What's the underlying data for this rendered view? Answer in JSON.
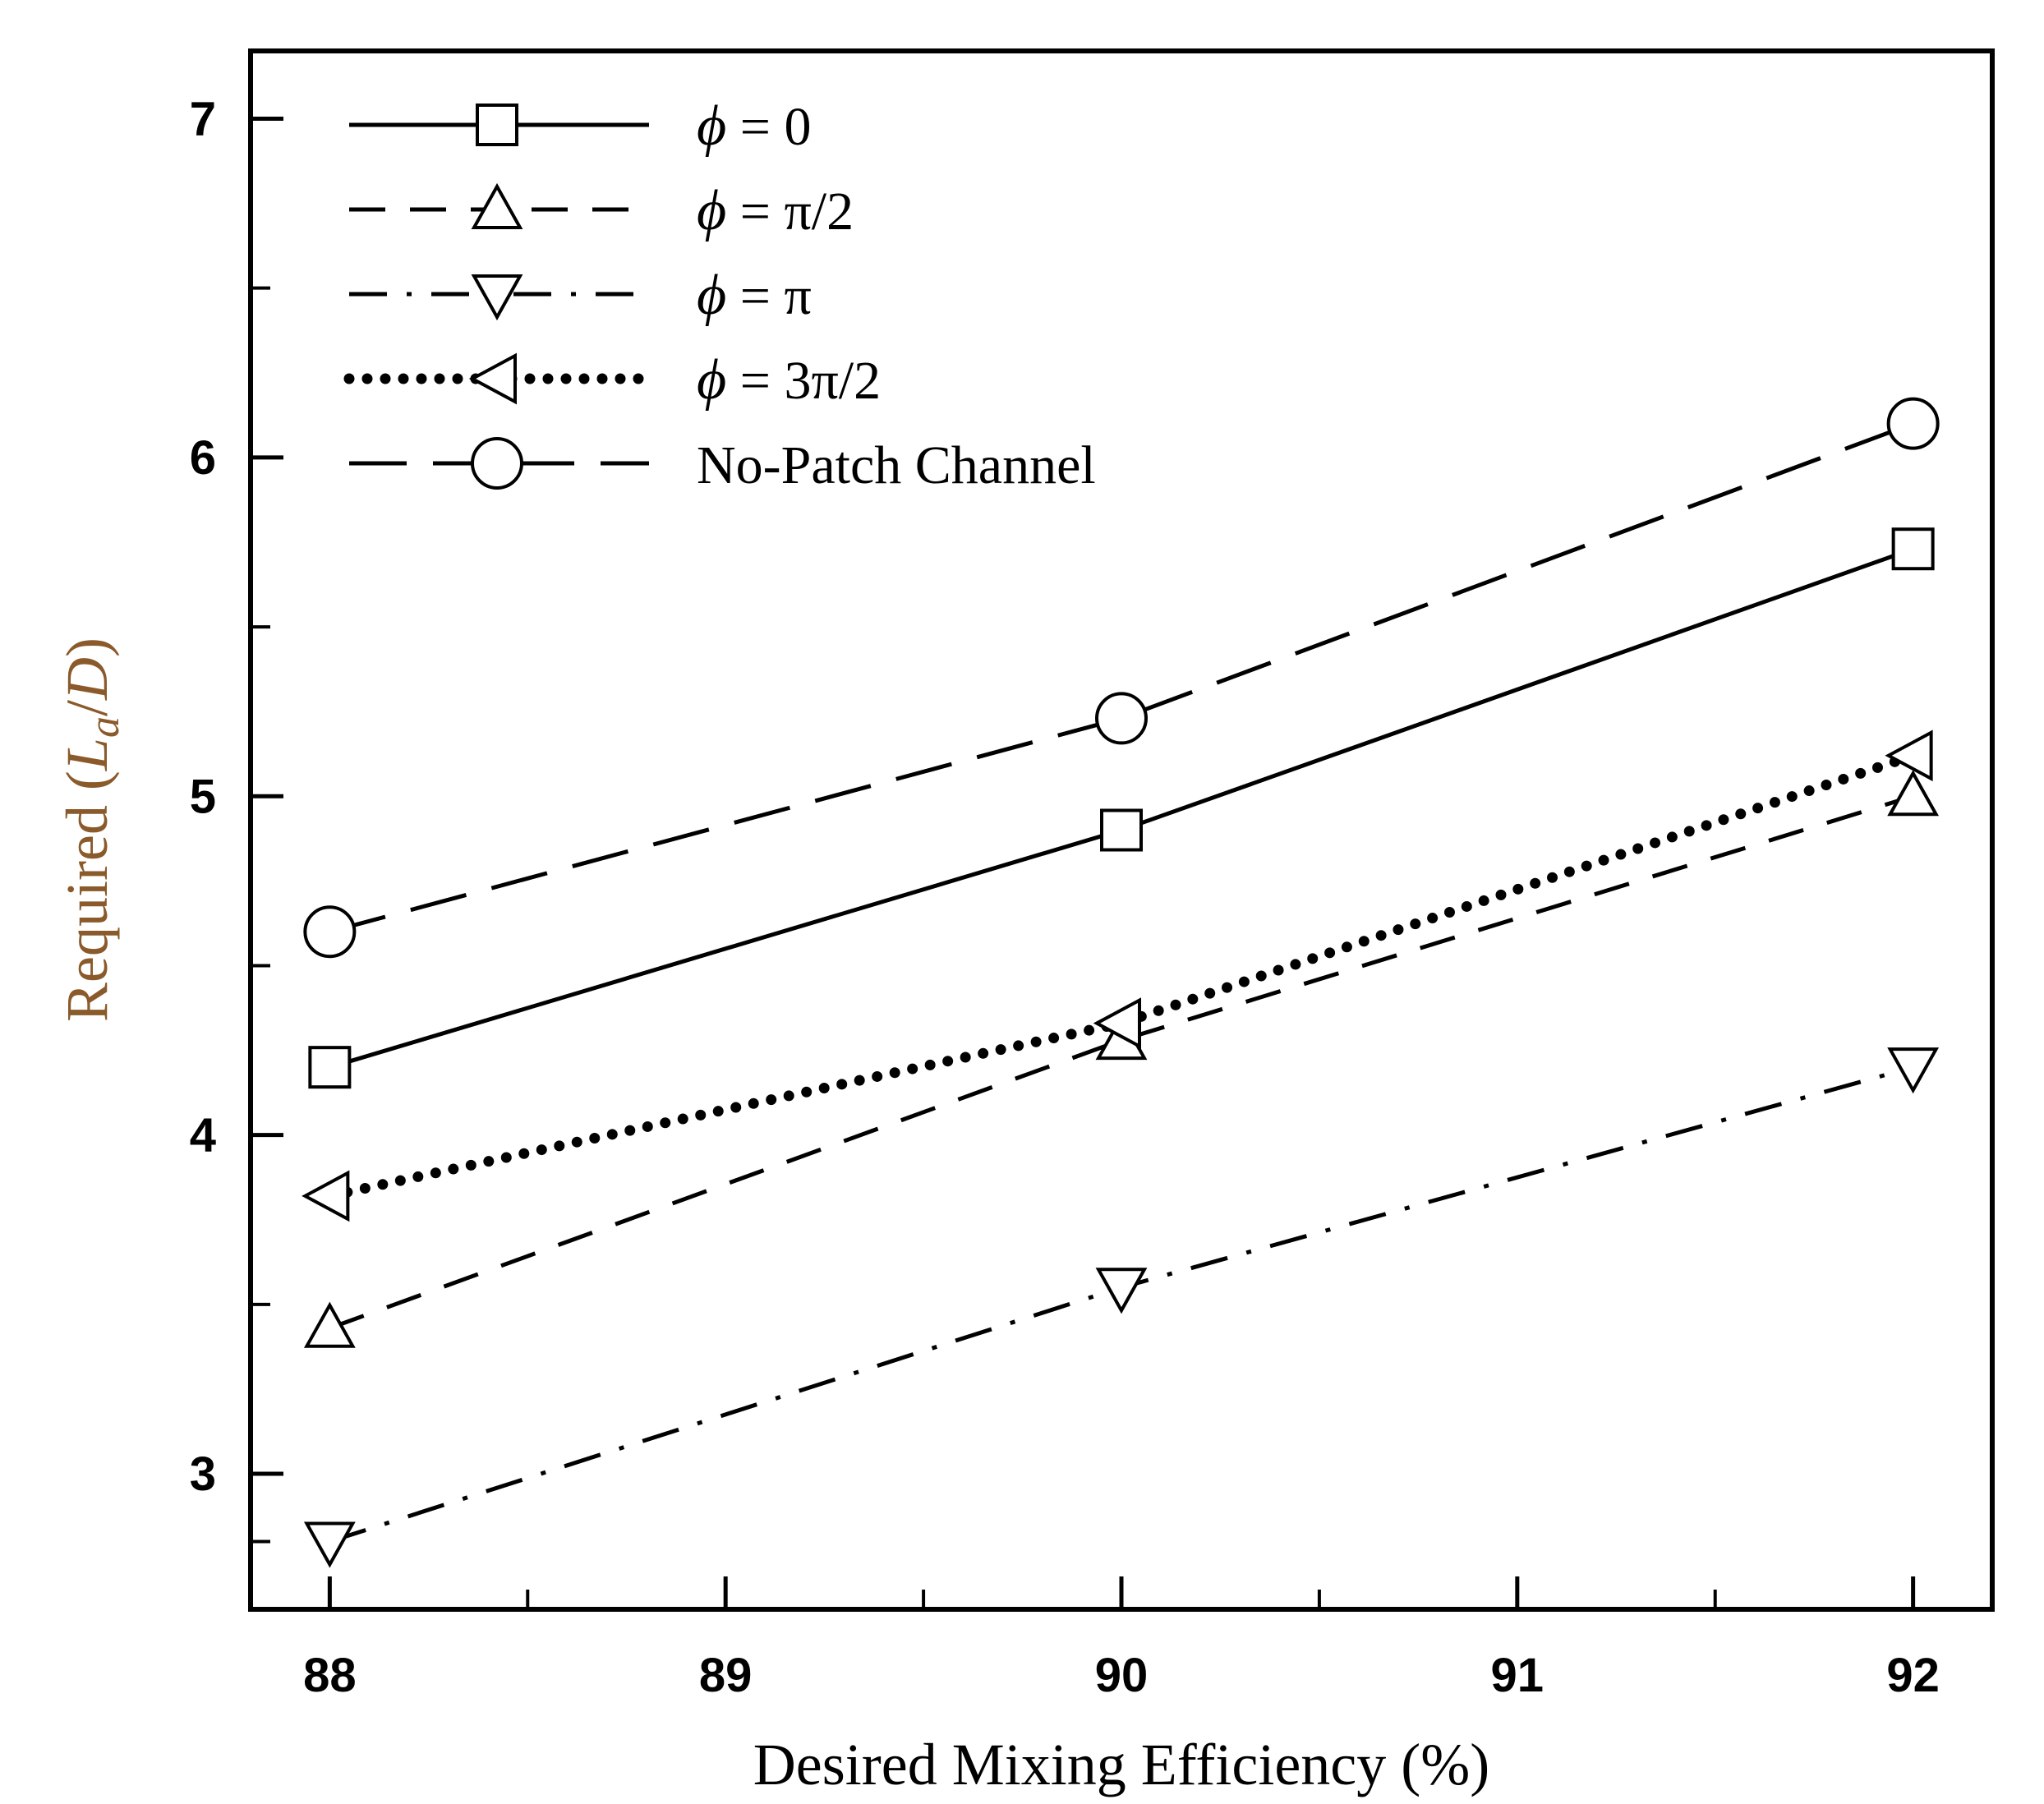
{
  "chart_data": {
    "type": "line",
    "title": "",
    "xlabel": "Desired Mixing Efficiency  (%)",
    "ylabel_prefix": "Required",
    "ylabel_var": "L",
    "ylabel_sub": "a",
    "ylabel_den": "D",
    "x": [
      88,
      90,
      92
    ],
    "xlim": [
      87.8,
      92.2
    ],
    "ylim": [
      2.6,
      7.2
    ],
    "xticks": [
      88,
      89,
      90,
      91,
      92
    ],
    "xtick_labels": [
      "88",
      "89",
      "90",
      "91",
      "92"
    ],
    "yticks": [
      3,
      4,
      5,
      6,
      7
    ],
    "ytick_labels": [
      "3",
      "4",
      "5",
      "6",
      "7"
    ],
    "grid": false,
    "legend_position": "top-left",
    "series": [
      {
        "name": "ϕ = 0",
        "label_sym": "ϕ",
        "label_rest": " = 0",
        "values": [
          4.2,
          4.9,
          5.73
        ],
        "dash": "solid",
        "marker": "square",
        "key": "phi-0"
      },
      {
        "name": "ϕ = π/2",
        "label_sym": "ϕ",
        "label_rest": " = π/2",
        "values": [
          3.43,
          4.28,
          5.0
        ],
        "dash": "dash",
        "marker": "triangle-up",
        "key": "phi-pi-half"
      },
      {
        "name": "ϕ = π",
        "label_sym": "ϕ",
        "label_rest": " = π",
        "values": [
          2.8,
          3.55,
          4.2
        ],
        "dash": "dashdot",
        "marker": "triangle-down",
        "key": "phi-pi"
      },
      {
        "name": "ϕ = 3π/2",
        "label_sym": "ϕ",
        "label_rest": " = 3π/2",
        "values": [
          3.82,
          4.33,
          5.12
        ],
        "dash": "dotted",
        "marker": "triangle-left",
        "key": "phi-3pi-half"
      },
      {
        "name": "No-Patch Channel",
        "label_sym": "",
        "label_rest": "No-Patch Channel",
        "values": [
          4.6,
          5.23,
          6.1
        ],
        "dash": "longdash",
        "marker": "circle",
        "key": "no-patch"
      }
    ]
  }
}
